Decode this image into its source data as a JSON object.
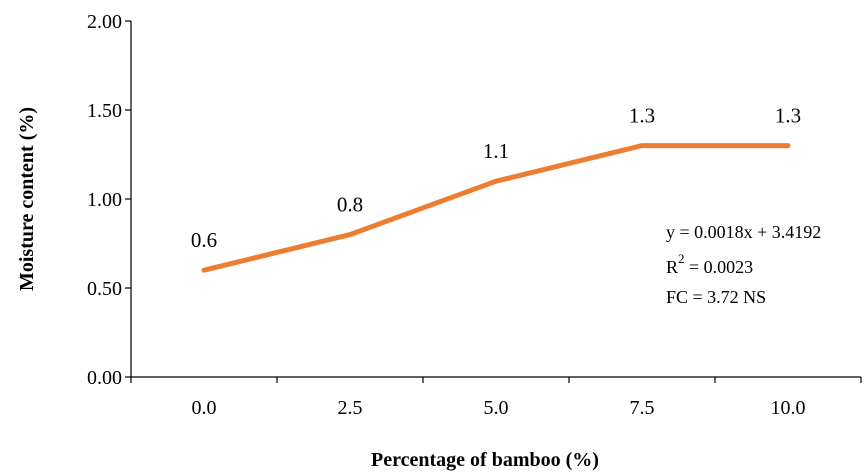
{
  "chart_data": {
    "type": "line",
    "categories": [
      "0.0",
      "2.5",
      "5.0",
      "7.5",
      "10.0"
    ],
    "series": [
      {
        "values": [
          0.6,
          0.8,
          1.1,
          1.3,
          1.3
        ],
        "color": "#ED7D31"
      }
    ],
    "data_labels": [
      "0.6",
      "0.8",
      "1.1",
      "1.3",
      "1.3"
    ],
    "xlabel": "Percentage of bamboo (%)",
    "ylabel": "Moisture content  (%)",
    "ylim": [
      0,
      2.0
    ],
    "yticks": [
      "0.00",
      "0.50",
      "1.00",
      "1.50",
      "2.00"
    ],
    "grid": false,
    "annotations": {
      "equation": "y = 0.0018x + 3.4192",
      "r2_base": "R",
      "r2_sup": "2",
      "r2_rest": " = 0.0023",
      "fc": "FC = 3.72 NS"
    }
  }
}
